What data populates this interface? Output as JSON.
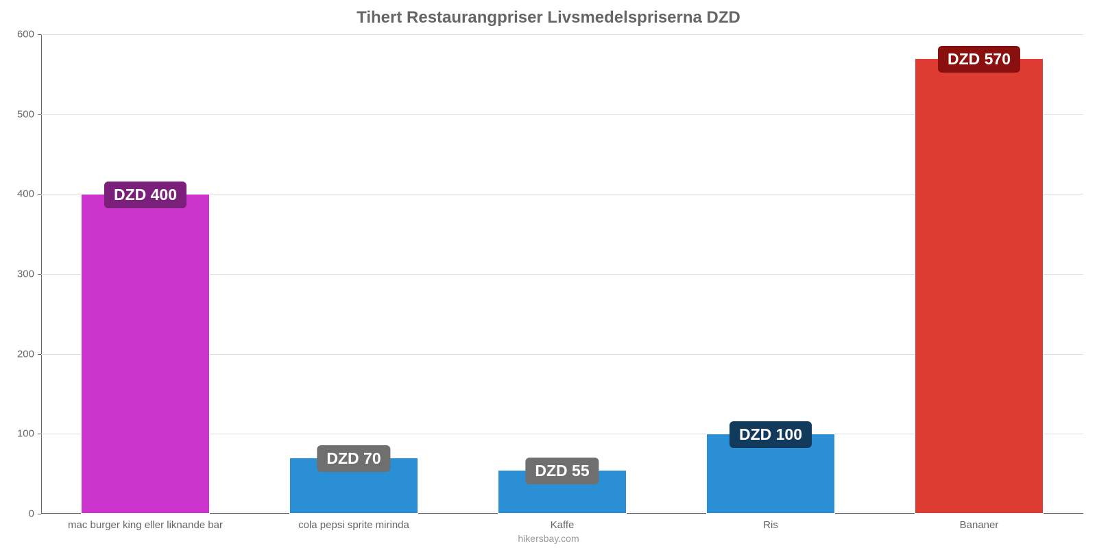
{
  "chart": {
    "type": "bar",
    "title": "Tihert Restaurangpriser Livsmedelspriserna DZD",
    "title_fontsize": 24,
    "title_color": "#666666",
    "credit": "hikersbay.com",
    "credit_color": "#999999",
    "background_color": "#ffffff",
    "axis_color": "#666666",
    "grid_color": "#e0e0e0",
    "tick_label_color": "#666666",
    "tick_fontsize": 15,
    "ymin": 0,
    "ymax": 600,
    "ytick_step": 100,
    "yticks": [
      0,
      100,
      200,
      300,
      400,
      500,
      600
    ],
    "bar_width_ratio": 0.62,
    "value_label_fontsize": 23,
    "currency_prefix": "DZD ",
    "items": [
      {
        "category": "mac burger king eller liknande bar",
        "value": 400,
        "value_label": "DZD 400",
        "bar_color": "#cc33cc",
        "label_bg": "#7a1f7a",
        "label_text_color": "#ffffff"
      },
      {
        "category": "cola pepsi sprite mirinda",
        "value": 70,
        "value_label": "DZD 70",
        "bar_color": "#2a8fd4",
        "label_bg": "#6f6f6f",
        "label_text_color": "#ffffff"
      },
      {
        "category": "Kaffe",
        "value": 55,
        "value_label": "DZD 55",
        "bar_color": "#2a8fd4",
        "label_bg": "#6f6f6f",
        "label_text_color": "#ffffff"
      },
      {
        "category": "Ris",
        "value": 100,
        "value_label": "DZD 100",
        "bar_color": "#2a8fd4",
        "label_bg": "#123a5c",
        "label_text_color": "#ffffff"
      },
      {
        "category": "Bananer",
        "value": 570,
        "value_label": "DZD 570",
        "bar_color": "#de3b33",
        "label_bg": "#8a0f0f",
        "label_text_color": "#ffffff"
      }
    ]
  }
}
